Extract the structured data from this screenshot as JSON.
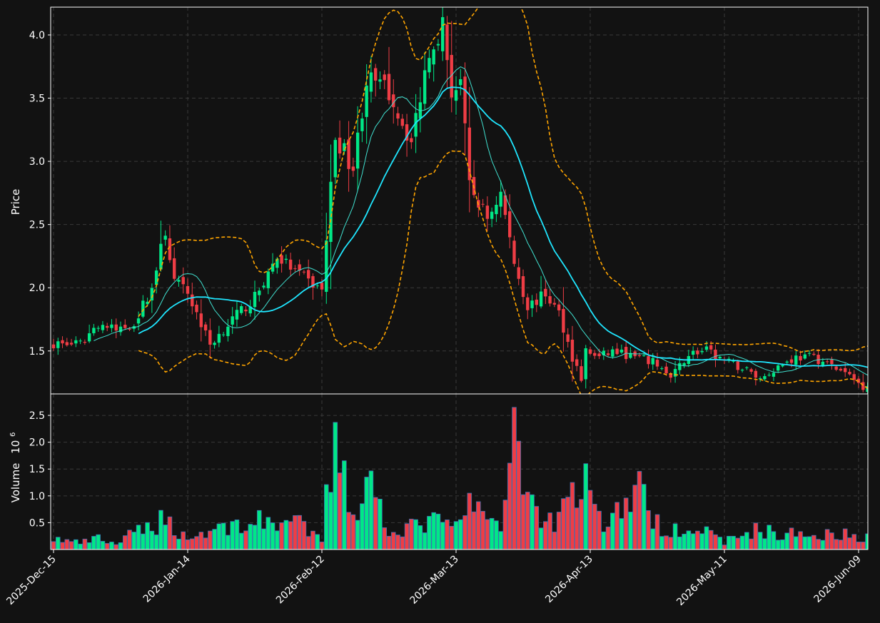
{
  "chart_data": {
    "type": "candlestick",
    "price_panel": {
      "ylabel": "Price",
      "yticks": [
        "1.5",
        "2.0",
        "2.5",
        "3.0",
        "3.5",
        "4.0"
      ],
      "ylim": [
        1.16,
        4.22
      ],
      "grid": true
    },
    "volume_panel": {
      "ylabel": "Volume",
      "exponent_label": "10",
      "exponent_power": "6",
      "yticks": [
        "0.5",
        "1.0",
        "1.5",
        "2.0",
        "2.5"
      ],
      "ylim": [
        0,
        2.9
      ],
      "grid": true
    },
    "xticks": [
      {
        "label": "2025-Dec-15",
        "index": 0
      },
      {
        "label": "2026-Jan-14",
        "index": 30
      },
      {
        "label": "2026-Feb-12",
        "index": 60
      },
      {
        "label": "2026-Mar-13",
        "index": 90
      },
      {
        "label": "2026-Apr-13",
        "index": 120
      },
      {
        "label": "2026-May-11",
        "index": 150
      },
      {
        "label": "2026-Jun-09",
        "index": 180
      }
    ],
    "num_bars": 184,
    "colors": {
      "up": "#00e887",
      "down": "#ef3d45",
      "ma_fast": "#40e0d0",
      "ma_slow": "#1fe6ff",
      "bands": "#ffa500",
      "volume_edge": "#3b6fb0"
    },
    "anchors": [
      [
        0,
        1.56,
        0.2
      ],
      [
        6,
        1.55,
        0.12
      ],
      [
        10,
        1.72,
        0.2
      ],
      [
        14,
        1.66,
        0.1
      ],
      [
        18,
        1.72,
        0.3
      ],
      [
        22,
        2.0,
        0.45
      ],
      [
        25,
        2.45,
        0.58
      ],
      [
        27,
        2.05,
        0.4
      ],
      [
        30,
        1.96,
        0.2
      ],
      [
        35,
        1.55,
        0.35
      ],
      [
        40,
        1.75,
        0.45
      ],
      [
        45,
        1.92,
        0.5
      ],
      [
        50,
        2.25,
        0.55
      ],
      [
        55,
        2.1,
        0.45
      ],
      [
        60,
        1.98,
        0.15
      ],
      [
        63,
        3.2,
        2.37
      ],
      [
        67,
        2.95,
        0.6
      ],
      [
        70,
        3.65,
        1.35
      ],
      [
        75,
        3.55,
        0.4
      ],
      [
        80,
        3.15,
        0.4
      ],
      [
        84,
        3.9,
        0.55
      ],
      [
        87,
        4.08,
        0.45
      ],
      [
        89,
        3.55,
        0.45
      ],
      [
        91,
        3.65,
        0.45
      ],
      [
        93,
        2.8,
        1.05
      ],
      [
        97,
        2.55,
        0.55
      ],
      [
        100,
        2.75,
        0.3
      ],
      [
        103,
        2.2,
        2.65
      ],
      [
        106,
        1.85,
        1.0
      ],
      [
        110,
        1.95,
        0.5
      ],
      [
        113,
        1.8,
        0.6
      ],
      [
        116,
        1.45,
        1.25
      ],
      [
        118,
        1.28,
        0.88
      ],
      [
        119,
        1.5,
        1.6
      ],
      [
        122,
        1.45,
        0.55
      ],
      [
        125,
        1.5,
        0.55
      ],
      [
        130,
        1.45,
        1.2
      ],
      [
        135,
        1.4,
        0.45
      ],
      [
        138,
        1.28,
        0.4
      ],
      [
        142,
        1.48,
        0.45
      ],
      [
        146,
        1.5,
        0.3
      ],
      [
        150,
        1.42,
        0.15
      ],
      [
        155,
        1.35,
        0.3
      ],
      [
        158,
        1.28,
        0.4
      ],
      [
        162,
        1.38,
        0.25
      ],
      [
        166,
        1.45,
        0.3
      ],
      [
        170,
        1.45,
        0.25
      ],
      [
        174,
        1.38,
        0.35
      ],
      [
        178,
        1.3,
        0.25
      ],
      [
        181,
        1.22,
        0.25
      ],
      [
        183,
        1.26,
        0.28
      ]
    ]
  }
}
